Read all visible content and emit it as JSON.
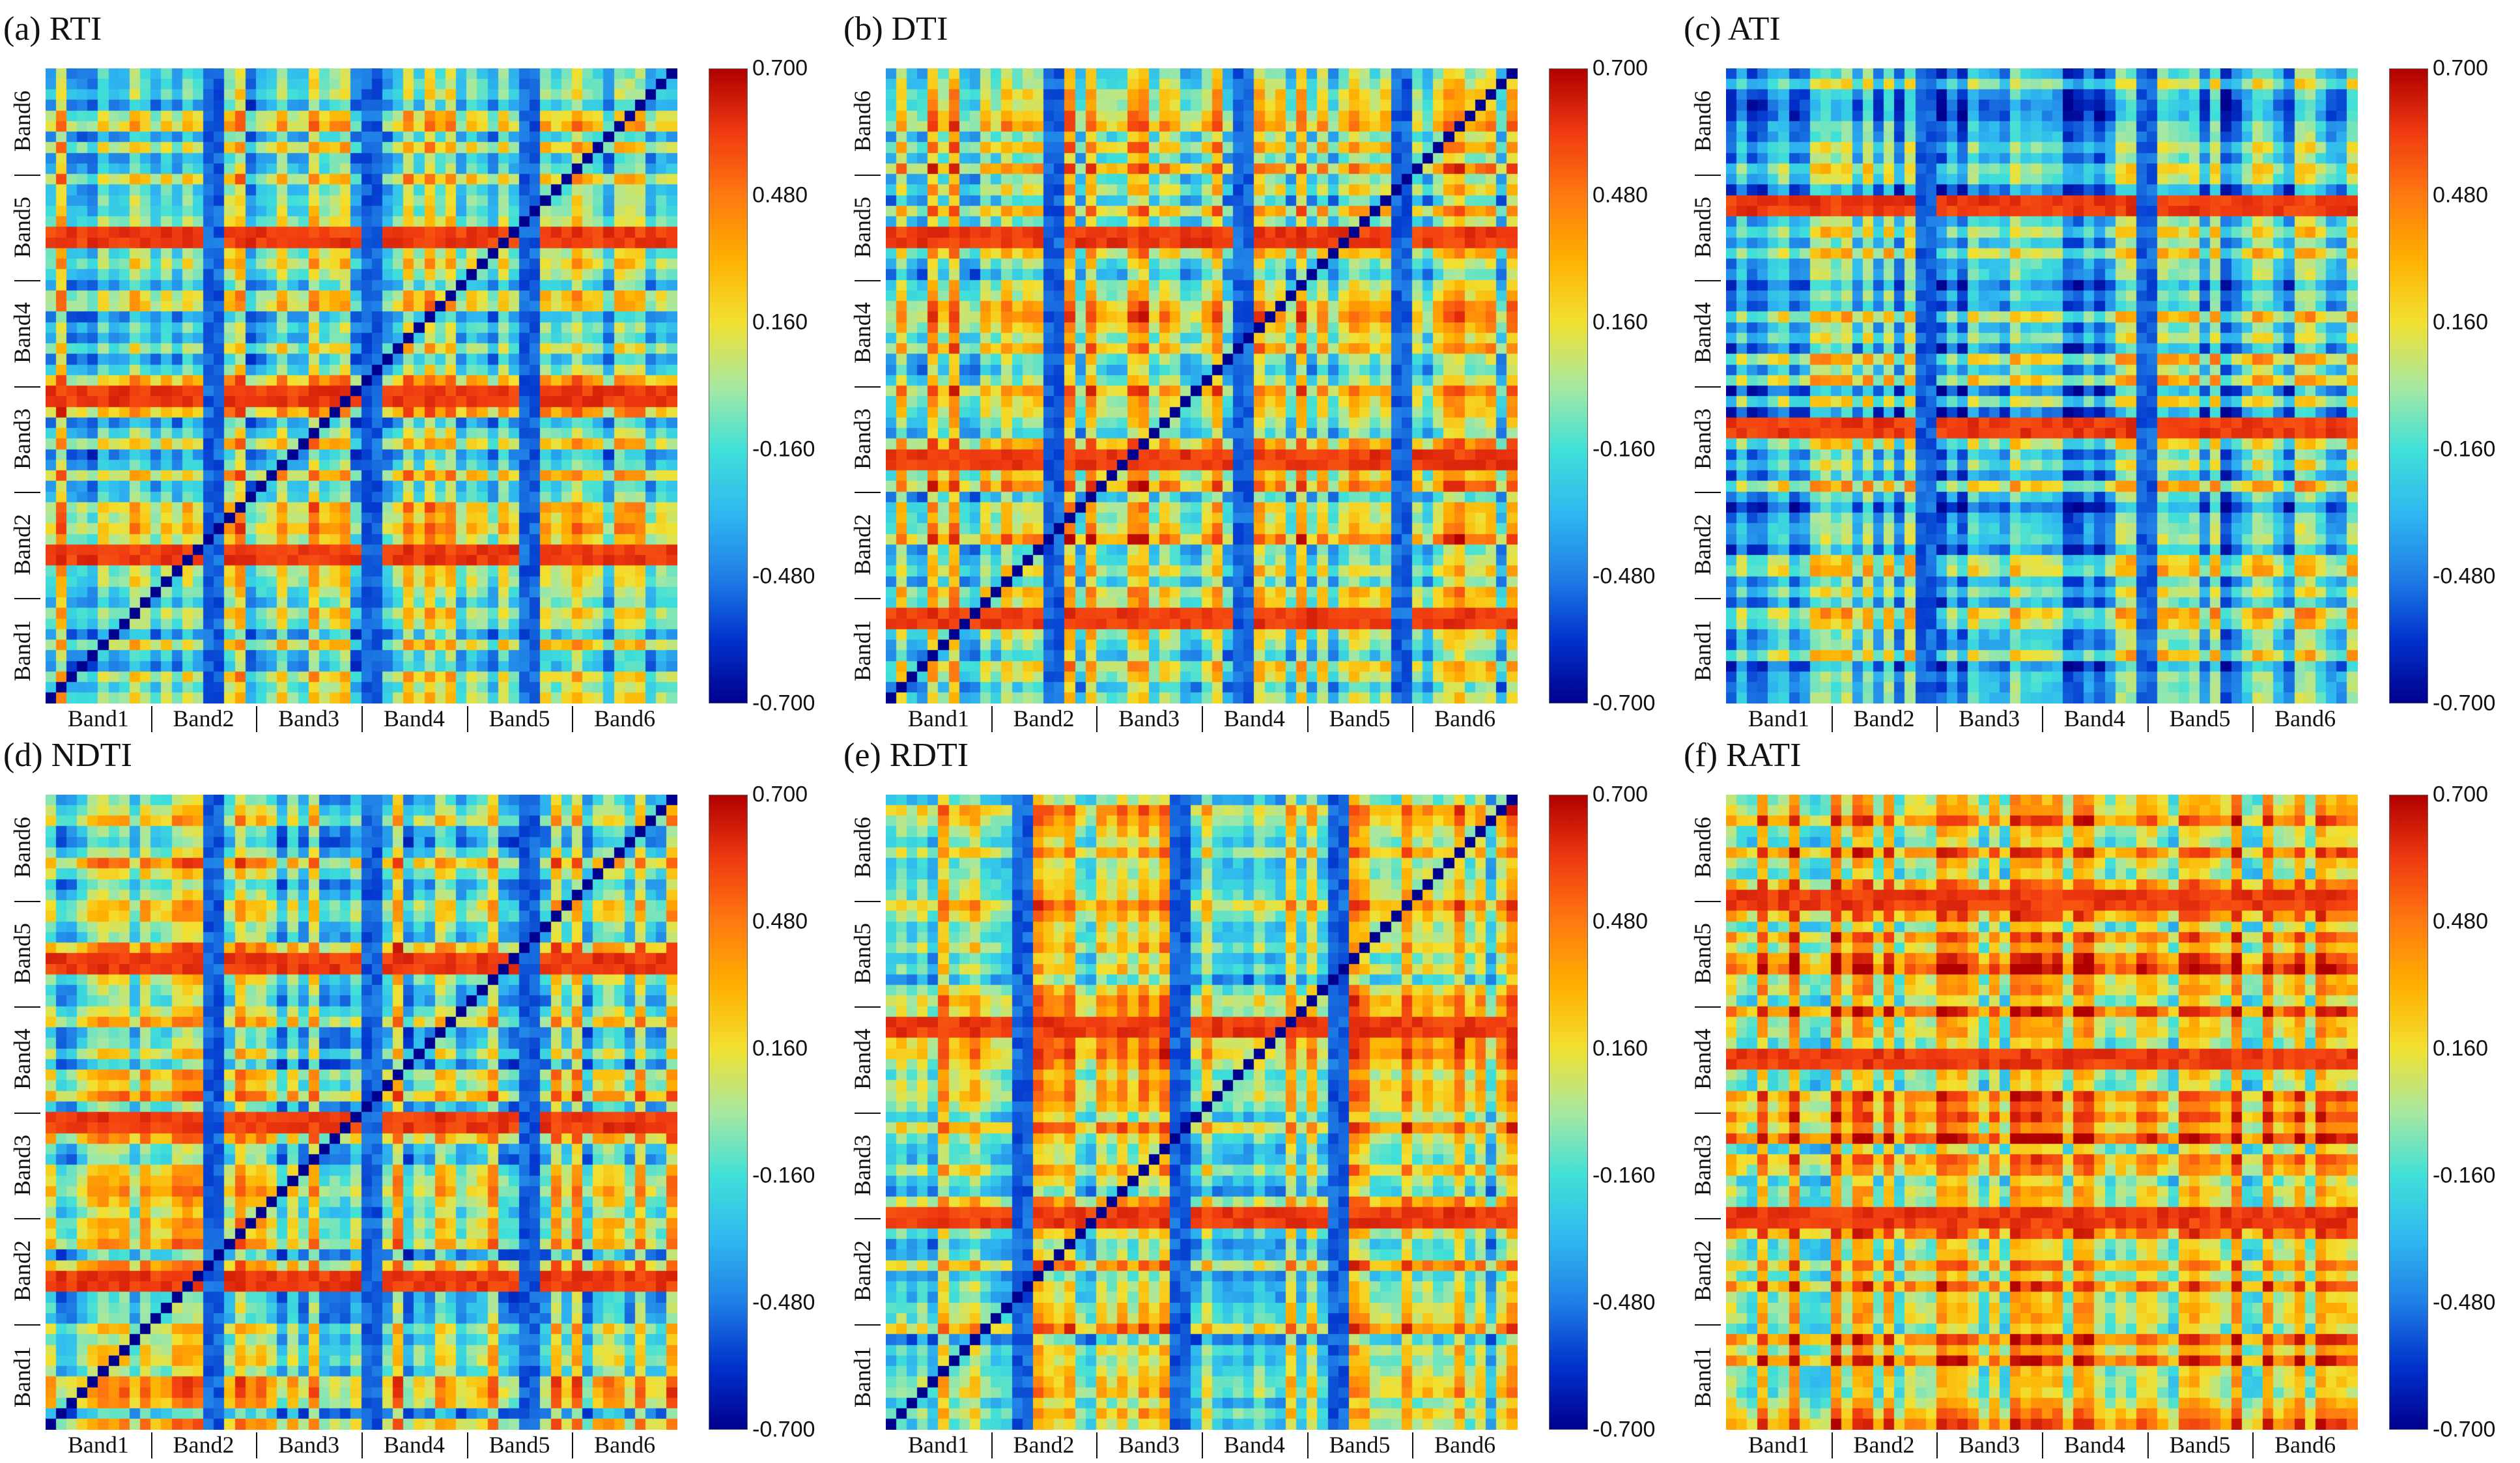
{
  "colorbar": {
    "ticks": [
      "0.700",
      "0.480",
      "0.160",
      "-0.160",
      "-0.480",
      "-0.700"
    ],
    "range": [
      -0.7,
      0.7
    ],
    "colors": [
      "#00008f",
      "#0033cc",
      "#1f7fe6",
      "#2fb8f0",
      "#40e0d8",
      "#a8e8a0",
      "#f2e030",
      "#ffb000",
      "#ff7a10",
      "#f03a10",
      "#b00000"
    ]
  },
  "chart_data": [
    {
      "type": "heatmap",
      "id": "a",
      "title": "(a) RTI",
      "x_tick_labels": [
        "Band1",
        "Band2",
        "Band3",
        "Band4",
        "Band5",
        "Band6"
      ],
      "y_tick_labels": [
        "Band6",
        "Band5",
        "Band4",
        "Band3",
        "Band2",
        "Band1"
      ],
      "value_range": [
        -0.7,
        0.7
      ],
      "grid_size": 60,
      "diagonal": -0.7,
      "pattern": {
        "base": 0.0,
        "highRows": [
          5,
          10,
          15
        ],
        "lowCols": [
          5,
          10,
          15
        ],
        "seed": 11
      }
    },
    {
      "type": "heatmap",
      "id": "b",
      "title": "(b) DTI",
      "x_tick_labels": [
        "Band1",
        "Band2",
        "Band3",
        "Band4",
        "Band5",
        "Band6"
      ],
      "y_tick_labels": [
        "Band6",
        "Band5",
        "Band4",
        "Band3",
        "Band2",
        "Band1"
      ],
      "value_range": [
        -0.7,
        0.7
      ],
      "grid_size": 60,
      "diagonal": -0.7,
      "pattern": {
        "base": 0.08,
        "highRows": [
          5,
          12,
          17
        ],
        "lowCols": [
          5,
          11,
          16
        ],
        "seed": 23
      }
    },
    {
      "type": "heatmap",
      "id": "c",
      "title": "(c) ATI",
      "x_tick_labels": [
        "Band1",
        "Band2",
        "Band3",
        "Band4",
        "Band5",
        "Band6"
      ],
      "y_tick_labels": [
        "Band6",
        "Band5",
        "Band4",
        "Band3",
        "Band2",
        "Band1"
      ],
      "value_range": [
        -0.7,
        0.7
      ],
      "grid_size": 60,
      "diagonal": null,
      "pattern": {
        "base": -0.15,
        "highRows": [
          4,
          11
        ],
        "lowCols": [
          6,
          13
        ],
        "seed": 37
      }
    },
    {
      "type": "heatmap",
      "id": "d",
      "title": "(d) NDTI",
      "x_tick_labels": [
        "Band1",
        "Band2",
        "Band3",
        "Band4",
        "Band5",
        "Band6"
      ],
      "y_tick_labels": [
        "Band6",
        "Band5",
        "Band4",
        "Band3",
        "Band2",
        "Band1"
      ],
      "value_range": [
        -0.7,
        0.7
      ],
      "grid_size": 60,
      "diagonal": -0.7,
      "pattern": {
        "base": 0.0,
        "highRows": [
          5,
          10,
          15
        ],
        "lowCols": [
          5,
          10,
          15
        ],
        "seed": 13
      }
    },
    {
      "type": "heatmap",
      "id": "e",
      "title": "(e) RDTI",
      "x_tick_labels": [
        "Band1",
        "Band2",
        "Band3",
        "Band4",
        "Band5",
        "Band6"
      ],
      "y_tick_labels": [
        "Band6",
        "Band5",
        "Band4",
        "Band3",
        "Band2",
        "Band1"
      ],
      "value_range": [
        -0.7,
        0.7
      ],
      "grid_size": 60,
      "diagonal": -0.7,
      "pattern": {
        "base": 0.05,
        "highRows": [
          7,
          13
        ],
        "lowCols": [
          4,
          9,
          14
        ],
        "seed": 51
      }
    },
    {
      "type": "heatmap",
      "id": "f",
      "title": "(f) RATI",
      "x_tick_labels": [
        "Band1",
        "Band2",
        "Band3",
        "Band4",
        "Band5",
        "Band6"
      ],
      "y_tick_labels": [
        "Band6",
        "Band5",
        "Band4",
        "Band3",
        "Band2",
        "Band1"
      ],
      "value_range": [
        -0.7,
        0.7
      ],
      "grid_size": 60,
      "diagonal": null,
      "pattern": {
        "base": 0.25,
        "highRows": [
          3,
          8,
          13
        ],
        "lowCols": [],
        "seed": 67
      }
    }
  ]
}
